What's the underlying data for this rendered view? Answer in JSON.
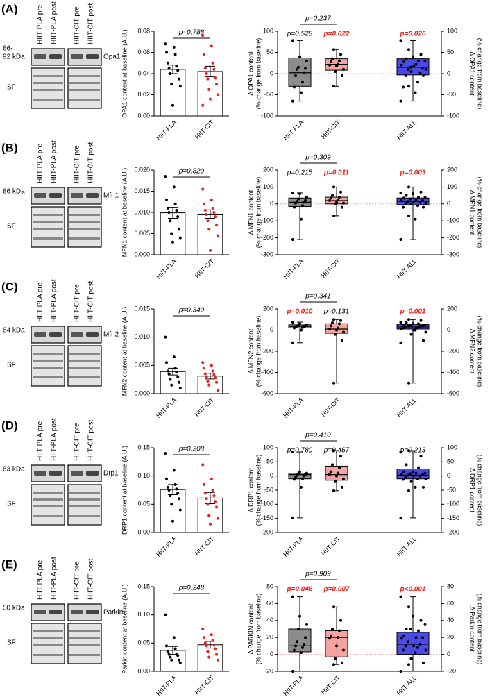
{
  "panels": [
    {
      "label": "(A)",
      "kda": [
        "86-",
        "92 kDa"
      ],
      "protein": "Opa1",
      "sf": "SF",
      "lanes": [
        "HIIT-PLA pre",
        "HIIT-PLA post",
        "HIIT-CIT pre",
        "HIIT-CIT post"
      ]
    },
    {
      "label": "(B)",
      "kda": [
        "86 kDa"
      ],
      "protein": "Mfn1",
      "sf": "SF",
      "lanes": [
        "HIIT-PLA pre",
        "HIIT-PLA post",
        "HIIT-CIT pre",
        "HIIT-CIT post"
      ]
    },
    {
      "label": "(C)",
      "kda": [
        "84 kDa"
      ],
      "protein": "Mfn2",
      "sf": "SF",
      "lanes": [
        "HIIT-PLA pre",
        "HIIT-PLA post",
        "HIIT-CIT pre",
        "HIIT-CIT post"
      ]
    },
    {
      "label": "(D)",
      "kda": [
        "83 kDa"
      ],
      "protein": "Drp1",
      "sf": "SF",
      "lanes": [
        "HIIT-PLA pre",
        "HIIT-PLA post",
        "HIIT-CIT pre",
        "HIIT-CIT post"
      ]
    },
    {
      "label": "(E)",
      "kda": [
        "50 kDa"
      ],
      "protein": "Parkin",
      "sf": "SF",
      "lanes": [
        "HIIT-PLA pre",
        "HIIT-PLA post",
        "HIIT-CIT pre",
        "HIIT-CIT post"
      ]
    }
  ],
  "chart_data": [
    {
      "type": "bar",
      "ylabel": "OPA1 content at baseline (A.U.)",
      "categories": [
        "HIIT-PLA",
        "HIIT-CIT"
      ],
      "values": [
        0.044,
        0.042
      ],
      "errors": [
        0.004,
        0.005
      ],
      "points": [
        [
          0.068,
          0.065,
          0.06,
          0.058,
          0.05,
          0.047,
          0.045,
          0.043,
          0.04,
          0.035,
          0.03,
          0.028,
          0.01
        ],
        [
          0.076,
          0.066,
          0.058,
          0.05,
          0.045,
          0.044,
          0.04,
          0.036,
          0.035,
          0.03,
          0.025,
          0.02,
          0.016,
          0.01
        ]
      ],
      "point_colors": [
        "#000000",
        "#e8201c"
      ],
      "ylim": [
        0,
        0.08
      ],
      "yticks": [
        {
          "value": 0,
          "label": "0.00"
        },
        0.02,
        0.04,
        0.06,
        0.08
      ],
      "pvalue": "p=0.788"
    },
    {
      "type": "box",
      "ylabel": [
        "Δ OPA1 content",
        "(% change from baseline)"
      ],
      "y2label": [
        "Δ OPA1 content",
        "(% change from baseline)"
      ],
      "categories": [
        "HIIT-PLA",
        "HIIT-CIT",
        "HIIT-ALL"
      ],
      "colors": [
        "#8c8c8c",
        "#f4a3a0",
        "#4a4ae8"
      ],
      "boxes": [
        {
          "min": -65,
          "q1": -30,
          "median": 2,
          "q3": 37,
          "max": 78
        },
        {
          "min": -30,
          "q1": 8,
          "median": 22,
          "q3": 35,
          "max": 57
        },
        {
          "min": -65,
          "q1": -3,
          "median": 15,
          "q3": 35,
          "max": 78
        }
      ],
      "points": [
        [
          78,
          40,
          30,
          15,
          12,
          10,
          2,
          -5,
          -20,
          -32,
          -45,
          -65
        ],
        [
          57,
          45,
          35,
          30,
          28,
          22,
          20,
          18,
          10,
          5,
          -5,
          -30
        ]
      ],
      "ylim": [
        -100,
        100
      ],
      "yticks": [
        -100,
        -50,
        0,
        50,
        100
      ],
      "y2lim": [
        -100,
        100
      ],
      "y2ticks": [
        -100,
        -50,
        0,
        50,
        100
      ],
      "zero_line": true,
      "pvalues": [
        {
          "text": "p=0.528",
          "color": "#000000"
        },
        {
          "text": "p=0.022",
          "color": "#e8201c"
        },
        {
          "text": "p=0.026",
          "color": "#e8201c"
        }
      ],
      "bracket_pvalue": "p=0.237"
    },
    {
      "type": "bar",
      "ylabel": "MFN1 content at baseline (A.U.)",
      "categories": [
        "HIIT-PLA",
        "HIIT-CIT"
      ],
      "values": [
        0.0099,
        0.0096
      ],
      "errors": [
        0.0013,
        0.001
      ],
      "points": [
        [
          0.0185,
          0.016,
          0.013,
          0.012,
          0.011,
          0.0105,
          0.01,
          0.009,
          0.008,
          0.006,
          0.005,
          0.004,
          0.003
        ],
        [
          0.0155,
          0.013,
          0.012,
          0.011,
          0.0105,
          0.01,
          0.0095,
          0.009,
          0.008,
          0.007,
          0.006,
          0.0045,
          0.001
        ]
      ],
      "point_colors": [
        "#000000",
        "#e8201c"
      ],
      "ylim": [
        0,
        0.02
      ],
      "yticks": [
        {
          "value": 0,
          "label": "0.000"
        },
        0.005,
        {
          "value": 0.01,
          "label": "0.010"
        },
        0.015,
        {
          "value": 0.02,
          "label": "0.020"
        }
      ],
      "pvalue": "p=0.820"
    },
    {
      "type": "box",
      "ylabel": [
        "Δ MFN1 content",
        "(% change from baseline)"
      ],
      "y2label": [
        "Δ MFN1 content",
        "(% change from baseline)"
      ],
      "categories": [
        "HIIT-PLA",
        "HIIT-CIT",
        "HIIT-ALL"
      ],
      "colors": [
        "#8c8c8c",
        "#f4a3a0",
        "#4a4ae8"
      ],
      "boxes": [
        {
          "min": -210,
          "q1": -15,
          "median": 10,
          "q3": 35,
          "max": 65
        },
        {
          "min": -70,
          "q1": 0,
          "median": 20,
          "q3": 40,
          "max": 100
        },
        {
          "min": -210,
          "q1": -5,
          "median": 15,
          "q3": 35,
          "max": 100
        }
      ],
      "points": [
        [
          65,
          60,
          40,
          30,
          20,
          15,
          10,
          5,
          -10,
          -20,
          -90,
          -210
        ],
        [
          100,
          70,
          50,
          40,
          35,
          25,
          20,
          10,
          5,
          0,
          -20,
          -70
        ]
      ],
      "ylim": [
        -300,
        200
      ],
      "yticks": [
        -300,
        -200,
        -100,
        0,
        100,
        200
      ],
      "y2lim": [
        -300,
        200
      ],
      "y2ticks": [
        -300,
        -200,
        -100,
        0,
        100,
        200
      ],
      "zero_line": true,
      "pvalues": [
        {
          "text": "p=0.215",
          "color": "#000000"
        },
        {
          "text": "p=0.011",
          "color": "#e8201c"
        },
        {
          "text": "p=0.003",
          "color": "#e8201c"
        }
      ],
      "bracket_pvalue": "p=0.309"
    },
    {
      "type": "bar",
      "ylabel": "MFN2 content at baseline (A.U.)",
      "categories": [
        "HIIT-PLA",
        "HIIT-CIT"
      ],
      "values": [
        0.0039,
        0.0031
      ],
      "errors": [
        0.0006,
        0.0005
      ],
      "points": [
        [
          0.01,
          0.0065,
          0.0055,
          0.0045,
          0.004,
          0.0038,
          0.0035,
          0.003,
          0.0025,
          0.002,
          0.0015,
          0.001
        ],
        [
          0.0055,
          0.005,
          0.0045,
          0.004,
          0.0035,
          0.0033,
          0.003,
          0.0028,
          0.0022,
          0.002,
          0.0015,
          0.0005
        ]
      ],
      "point_colors": [
        "#000000",
        "#e8201c"
      ],
      "ylim": [
        0,
        0.015
      ],
      "yticks": [
        {
          "value": 0,
          "label": "0.000"
        },
        0.005,
        {
          "value": 0.01,
          "label": "0.010"
        },
        0.015
      ],
      "pvalue": "p=0.340"
    },
    {
      "type": "box",
      "ylabel": [
        "Δ MFN2 content",
        "(% change from baseline)"
      ],
      "y2label": [
        "Δ MFN2 content",
        "(% change from baseline)"
      ],
      "categories": [
        "HIIT-PLA",
        "HIIT-CIT",
        "HIIT-ALL"
      ],
      "colors": [
        "#8c8c8c",
        "#f4a3a0",
        "#4a4ae8"
      ],
      "boxes": [
        {
          "min": -120,
          "q1": 20,
          "median": 35,
          "q3": 50,
          "max": 75
        },
        {
          "min": -500,
          "q1": -30,
          "median": 10,
          "q3": 60,
          "max": 100
        },
        {
          "min": -500,
          "q1": 10,
          "median": 30,
          "q3": 55,
          "max": 100
        }
      ],
      "points": [
        [
          75,
          60,
          50,
          45,
          40,
          38,
          35,
          30,
          25,
          20,
          0,
          -120
        ],
        [
          100,
          90,
          70,
          60,
          40,
          20,
          10,
          0,
          -20,
          -40,
          -100,
          -500
        ]
      ],
      "ylim": [
        -600,
        200
      ],
      "yticks": [
        -600,
        -400,
        -200,
        0,
        200
      ],
      "y2lim": [
        -600,
        200
      ],
      "y2ticks": [
        -600,
        -400,
        -200,
        0,
        200
      ],
      "zero_line": true,
      "pvalues": [
        {
          "text": "p=0.010",
          "color": "#e8201c"
        },
        {
          "text": "p=0.131",
          "color": "#000000"
        },
        {
          "text": "p=0.001",
          "color": "#e8201c"
        }
      ],
      "bracket_pvalue": "p=0.341"
    },
    {
      "type": "bar",
      "ylabel": "DRP1 content at baseline (A.U.)",
      "categories": [
        "HIIT-PLA",
        "HIIT-CIT"
      ],
      "values": [
        0.076,
        0.061
      ],
      "errors": [
        0.009,
        0.01
      ],
      "points": [
        [
          0.14,
          0.11,
          0.095,
          0.085,
          0.08,
          0.077,
          0.075,
          0.07,
          0.065,
          0.06,
          0.05,
          0.04,
          0.02
        ],
        [
          0.12,
          0.095,
          0.085,
          0.075,
          0.07,
          0.065,
          0.06,
          0.055,
          0.05,
          0.045,
          0.03,
          0.025,
          0.015
        ]
      ],
      "point_colors": [
        "#000000",
        "#e8201c"
      ],
      "ylim": [
        0,
        0.15
      ],
      "yticks": [
        {
          "value": 0,
          "label": "0.00"
        },
        0.05,
        {
          "value": 0.1,
          "label": "0.10"
        },
        0.15
      ],
      "pvalue": "p=0.208"
    },
    {
      "type": "box",
      "ylabel": [
        "Δ DRP1 content",
        "(% change from baseline)"
      ],
      "y2label": [
        "Δ DRP1 content",
        "(% change from baseline)"
      ],
      "categories": [
        "HIIT-PLA",
        "HIIT-CIT",
        "HIIT-ALL"
      ],
      "colors": [
        "#8c8c8c",
        "#f4a3a0",
        "#4a4ae8"
      ],
      "boxes": [
        {
          "min": -148,
          "q1": -10,
          "median": 5,
          "q3": 10,
          "max": 85
        },
        {
          "min": -52,
          "q1": -15,
          "median": 5,
          "q3": 35,
          "max": 90
        },
        {
          "min": -148,
          "q1": -10,
          "median": 3,
          "q3": 25,
          "max": 90
        }
      ],
      "points": [
        [
          85,
          15,
          10,
          8,
          5,
          3,
          0,
          -5,
          -10,
          -12,
          -40,
          -148
        ],
        [
          90,
          70,
          40,
          30,
          15,
          10,
          5,
          0,
          -10,
          -20,
          -40,
          -52
        ]
      ],
      "ylim": [
        -200,
        100
      ],
      "yticks": [
        -200,
        -150,
        -100,
        -50,
        0,
        50,
        100
      ],
      "y2lim": [
        -200,
        100
      ],
      "y2ticks": [
        -200,
        -150,
        -100,
        -50,
        0,
        50,
        100
      ],
      "zero_line": true,
      "pvalues": [
        {
          "text": "p=0.780",
          "color": "#000000"
        },
        {
          "text": "p=0.467",
          "color": "#000000"
        },
        {
          "text": "p=0.213",
          "color": "#000000"
        }
      ],
      "bracket_pvalue": "p=0.410"
    },
    {
      "type": "bar",
      "ylabel": "Parkin content at baseline (A.U.)",
      "categories": [
        "HIIT-PLA",
        "HIIT-CIT"
      ],
      "values": [
        0.037,
        0.047
      ],
      "errors": [
        0.007,
        0.006
      ],
      "points": [
        [
          0.1,
          0.06,
          0.045,
          0.04,
          0.035,
          0.03,
          0.03,
          0.028,
          0.025,
          0.02,
          0.02,
          0.015
        ],
        [
          0.075,
          0.065,
          0.06,
          0.055,
          0.05,
          0.047,
          0.045,
          0.04,
          0.035,
          0.03,
          0.025,
          0.02
        ]
      ],
      "point_colors": [
        "#000000",
        "#e8201c"
      ],
      "ylim": [
        0,
        0.15
      ],
      "yticks": [
        {
          "value": 0,
          "label": "0.00"
        },
        0.05,
        {
          "value": 0.1,
          "label": "0.10"
        },
        0.15
      ],
      "pvalue": "p=0.248"
    },
    {
      "type": "box",
      "ylabel": [
        "Δ PARKIN content",
        "(% change from baseline)"
      ],
      "y2label": [
        "Δ Parkin content",
        "(% change from baseline)"
      ],
      "categories": [
        "HIIT-PLA",
        "HIIT-CIT",
        "HIIT-ALL"
      ],
      "colors": [
        "#8c8c8c",
        "#f4a3a0",
        "#4a4ae8"
      ],
      "boxes": [
        {
          "min": -20,
          "q1": 3,
          "median": 10,
          "q3": 30,
          "max": 68
        },
        {
          "min": -12,
          "q1": -3,
          "median": 20,
          "q3": 28,
          "max": 56
        },
        {
          "min": -20,
          "q1": 0,
          "median": 12,
          "q3": 26,
          "max": 68
        }
      ],
      "points": [
        [
          68,
          45,
          35,
          30,
          20,
          15,
          12,
          10,
          8,
          5,
          2,
          -20
        ],
        [
          56,
          40,
          30,
          28,
          22,
          20,
          19,
          10,
          5,
          -5,
          -10,
          -12
        ]
      ],
      "ylim": [
        -20,
        80
      ],
      "yticks": [
        -20,
        0,
        20,
        40,
        60,
        80
      ],
      "y2lim": [
        -20,
        80
      ],
      "y2ticks": [
        -20,
        0,
        20,
        40,
        60,
        80
      ],
      "zero_line": true,
      "pvalues": [
        {
          "text": "p=0.046",
          "color": "#e8201c"
        },
        {
          "text": "p=0.007",
          "color": "#e8201c"
        },
        {
          "text": "p<0.001",
          "color": "#e8201c"
        }
      ],
      "bracket_pvalue": "p=0.909"
    }
  ]
}
